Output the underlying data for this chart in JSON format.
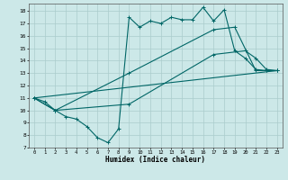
{
  "xlabel": "Humidex (Indice chaleur)",
  "background_color": "#cce8e8",
  "grid_color": "#aacccc",
  "line_color": "#006666",
  "xlim": [
    -0.5,
    23.5
  ],
  "ylim": [
    7,
    18.6
  ],
  "yticks": [
    7,
    8,
    9,
    10,
    11,
    12,
    13,
    14,
    15,
    16,
    17,
    18
  ],
  "xticks": [
    0,
    1,
    2,
    3,
    4,
    5,
    6,
    7,
    8,
    9,
    10,
    11,
    12,
    13,
    14,
    15,
    16,
    17,
    18,
    19,
    20,
    21,
    22,
    23
  ],
  "line1_x": [
    0,
    1,
    2,
    3,
    4,
    5,
    6,
    7,
    8,
    9,
    10,
    11,
    12,
    13,
    14,
    15,
    16,
    17,
    18,
    19,
    20,
    21,
    22,
    23
  ],
  "line1_y": [
    11.0,
    10.7,
    10.0,
    9.5,
    9.3,
    8.7,
    7.8,
    7.4,
    8.5,
    17.5,
    16.7,
    17.2,
    17.0,
    17.5,
    17.3,
    17.3,
    18.3,
    17.2,
    18.1,
    14.8,
    14.2,
    13.3,
    13.2,
    13.2
  ],
  "line2_x": [
    0,
    2,
    9,
    17,
    19,
    21,
    22,
    23
  ],
  "line2_y": [
    11.0,
    10.0,
    13.0,
    16.5,
    16.7,
    13.2,
    13.2,
    13.2
  ],
  "line3_x": [
    0,
    2,
    9,
    17,
    20,
    21,
    22,
    23
  ],
  "line3_y": [
    11.0,
    10.0,
    10.5,
    14.5,
    14.8,
    14.2,
    13.3,
    13.2
  ],
  "line4_x": [
    0,
    23
  ],
  "line4_y": [
    11.0,
    13.2
  ],
  "linewidth": 0.8,
  "marker_size": 3.0
}
